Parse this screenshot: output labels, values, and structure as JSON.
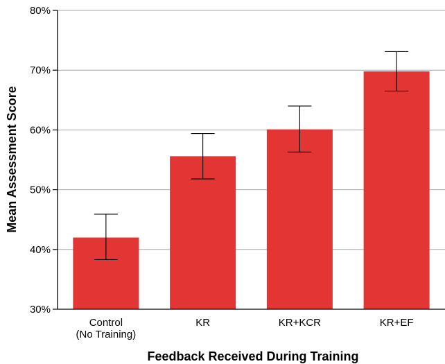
{
  "chart_data": {
    "type": "bar",
    "title": "",
    "xlabel": "Feedback Received During Training",
    "ylabel": "Mean Assessment Score",
    "ylim": [
      30,
      80
    ],
    "yticks": [
      30,
      40,
      50,
      60,
      70,
      80
    ],
    "ytick_format": "%",
    "grid": "horizontal",
    "categories": [
      [
        "Control",
        "(No Training)"
      ],
      [
        "KR"
      ],
      [
        "KR+KCR"
      ],
      [
        "KR+EF"
      ]
    ],
    "values": [
      42.0,
      55.6,
      60.1,
      69.8
    ],
    "error_low": [
      38.3,
      51.8,
      56.3,
      66.5
    ],
    "error_high": [
      45.9,
      59.4,
      64.0,
      73.1
    ],
    "colors": {
      "bar": "#e43535",
      "grid": "#a6a6a6",
      "axis": "#000000",
      "error_bar": "#000000"
    }
  }
}
